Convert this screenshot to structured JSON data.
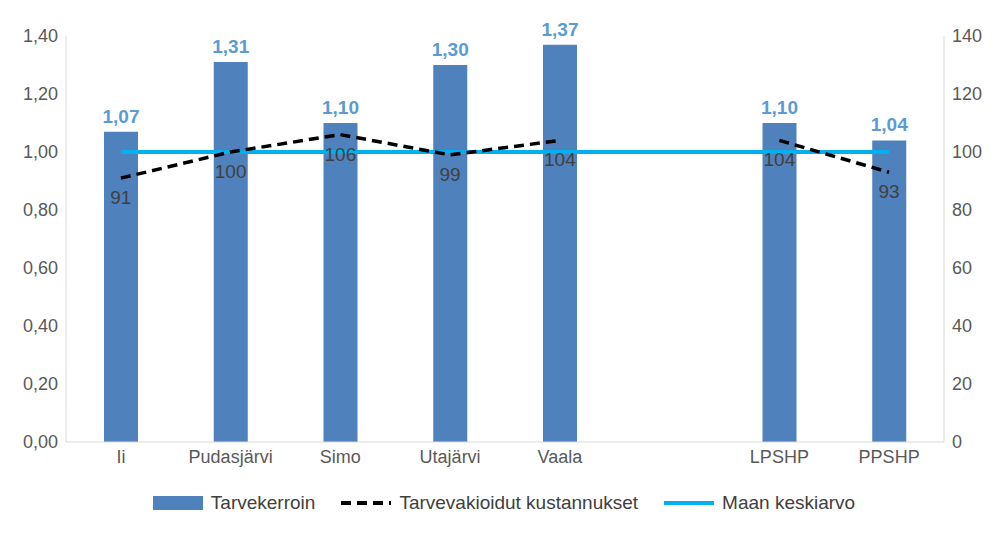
{
  "chart_data": {
    "type": "bar",
    "categories": [
      "Ii",
      "Pudasjärvi",
      "Simo",
      "Utajärvi",
      "Vaala",
      null,
      "LPSHP",
      "PPSHP"
    ],
    "series": [
      {
        "name": "Tarvekerroin",
        "type": "bar",
        "color": "#4f81bd",
        "values": [
          1.07,
          1.31,
          1.1,
          1.3,
          1.37,
          null,
          1.1,
          1.04
        ],
        "data_labels": true,
        "value_labels": [
          "1,07",
          "1,31",
          "1,10",
          "1,30",
          "1,37",
          null,
          "1,10",
          "1,04"
        ]
      },
      {
        "name": "Tarvevakioidut kustannukset",
        "type": "line",
        "axis": "y2",
        "color": "#000000",
        "line_style": "dashed",
        "values": [
          91,
          100,
          106,
          99,
          104,
          null,
          104,
          93
        ],
        "data_labels": true
      },
      {
        "name": "Maan keskiarvo",
        "type": "line",
        "color": "#00b0f0",
        "line_style": "solid",
        "values": [
          1,
          1,
          1,
          1,
          1,
          1,
          1,
          1
        ]
      }
    ],
    "ylim": [
      0,
      1.4
    ],
    "yticks": [
      {
        "value": 0,
        "label": "0,00"
      },
      {
        "value": 0.2,
        "label": "0,20"
      },
      {
        "value": 0.4,
        "label": "0,40"
      },
      {
        "value": 0.6,
        "label": "0,60"
      },
      {
        "value": 0.8,
        "label": "0,80"
      },
      {
        "value": 1.0,
        "label": "1,00"
      },
      {
        "value": 1.2,
        "label": "1,20"
      },
      {
        "value": 1.4,
        "label": "1,40"
      }
    ],
    "y2lim": [
      0,
      140
    ],
    "y2ticks": [
      0,
      20,
      40,
      60,
      80,
      100,
      120,
      140
    ],
    "grid": false,
    "legend": "bottom"
  }
}
